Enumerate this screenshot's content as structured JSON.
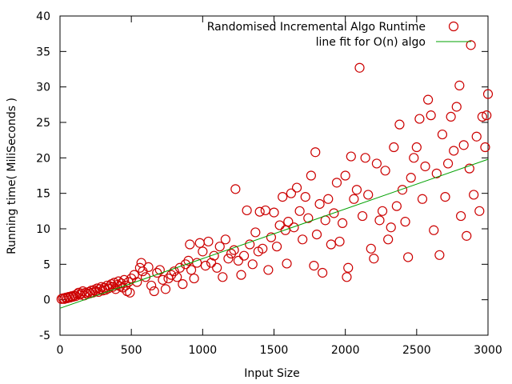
{
  "chart_data": {
    "type": "scatter",
    "xlabel": "Input Size",
    "ylabel": "Running time( MiliSeconds )",
    "xlim": [
      0,
      3000
    ],
    "ylim": [
      -5,
      40
    ],
    "xticks": [
      0,
      500,
      1000,
      1500,
      2000,
      2500,
      3000
    ],
    "yticks": [
      -5,
      0,
      5,
      10,
      15,
      20,
      25,
      30,
      35,
      40
    ],
    "grid": false,
    "legend_position": "top-right",
    "series": [
      {
        "name": "Randomised Incremental Algo Runtime",
        "kind": "scatter",
        "marker": "open-circle",
        "color": "#cc0000",
        "points": [
          [
            10,
            0.1
          ],
          [
            20,
            0.2
          ],
          [
            30,
            0.1
          ],
          [
            40,
            0.3
          ],
          [
            50,
            0.2
          ],
          [
            60,
            0.4
          ],
          [
            70,
            0.3
          ],
          [
            80,
            0.5
          ],
          [
            90,
            0.4
          ],
          [
            100,
            0.6
          ],
          [
            110,
            0.5
          ],
          [
            120,
            0.8
          ],
          [
            130,
            1.0
          ],
          [
            140,
            0.7
          ],
          [
            150,
            0.9
          ],
          [
            160,
            1.2
          ],
          [
            170,
            0.6
          ],
          [
            180,
            1.0
          ],
          [
            190,
            0.8
          ],
          [
            200,
            1.1
          ],
          [
            210,
            0.9
          ],
          [
            220,
            1.3
          ],
          [
            230,
            1.0
          ],
          [
            240,
            1.4
          ],
          [
            250,
            1.2
          ],
          [
            260,
            1.6
          ],
          [
            270,
            1.1
          ],
          [
            280,
            1.5
          ],
          [
            290,
            1.8
          ],
          [
            300,
            1.3
          ],
          [
            310,
            1.7
          ],
          [
            320,
            1.4
          ],
          [
            330,
            2.0
          ],
          [
            340,
            1.6
          ],
          [
            350,
            1.9
          ],
          [
            360,
            2.2
          ],
          [
            370,
            1.8
          ],
          [
            380,
            2.4
          ],
          [
            390,
            1.5
          ],
          [
            400,
            2.1
          ],
          [
            410,
            2.6
          ],
          [
            420,
            1.9
          ],
          [
            430,
            2.3
          ],
          [
            440,
            1.7
          ],
          [
            450,
            2.8
          ],
          [
            460,
            2.0
          ],
          [
            470,
            1.2
          ],
          [
            480,
            2.5
          ],
          [
            490,
            1.0
          ],
          [
            500,
            3.0
          ],
          [
            520,
            3.5
          ],
          [
            540,
            2.5
          ],
          [
            560,
            4.5
          ],
          [
            570,
            5.2
          ],
          [
            580,
            4.0
          ],
          [
            600,
            3.2
          ],
          [
            620,
            4.6
          ],
          [
            640,
            2.0
          ],
          [
            660,
            1.2
          ],
          [
            680,
            3.8
          ],
          [
            700,
            4.2
          ],
          [
            720,
            2.8
          ],
          [
            740,
            1.5
          ],
          [
            760,
            3.0
          ],
          [
            780,
            3.5
          ],
          [
            800,
            4.0
          ],
          [
            820,
            3.2
          ],
          [
            840,
            4.5
          ],
          [
            860,
            2.2
          ],
          [
            880,
            5.0
          ],
          [
            900,
            5.5
          ],
          [
            910,
            7.8
          ],
          [
            920,
            4.2
          ],
          [
            940,
            3.0
          ],
          [
            960,
            5.2
          ],
          [
            980,
            8.0
          ],
          [
            1000,
            6.8
          ],
          [
            1020,
            4.8
          ],
          [
            1040,
            8.2
          ],
          [
            1060,
            5.2
          ],
          [
            1080,
            6.2
          ],
          [
            1100,
            4.5
          ],
          [
            1120,
            7.5
          ],
          [
            1140,
            3.2
          ],
          [
            1160,
            8.5
          ],
          [
            1180,
            5.8
          ],
          [
            1200,
            6.5
          ],
          [
            1220,
            7.0
          ],
          [
            1230,
            15.6
          ],
          [
            1250,
            5.5
          ],
          [
            1270,
            3.5
          ],
          [
            1290,
            6.2
          ],
          [
            1310,
            12.6
          ],
          [
            1330,
            7.8
          ],
          [
            1350,
            5.0
          ],
          [
            1370,
            9.5
          ],
          [
            1390,
            6.8
          ],
          [
            1400,
            12.4
          ],
          [
            1420,
            7.2
          ],
          [
            1440,
            12.6
          ],
          [
            1460,
            4.2
          ],
          [
            1480,
            8.8
          ],
          [
            1500,
            12.3
          ],
          [
            1520,
            7.5
          ],
          [
            1540,
            10.5
          ],
          [
            1560,
            14.5
          ],
          [
            1580,
            9.8
          ],
          [
            1590,
            5.1
          ],
          [
            1600,
            11.0
          ],
          [
            1620,
            15.0
          ],
          [
            1640,
            10.2
          ],
          [
            1660,
            15.8
          ],
          [
            1680,
            12.5
          ],
          [
            1700,
            8.5
          ],
          [
            1720,
            14.5
          ],
          [
            1740,
            11.5
          ],
          [
            1760,
            17.5
          ],
          [
            1780,
            4.8
          ],
          [
            1790,
            20.8
          ],
          [
            1800,
            9.2
          ],
          [
            1820,
            13.5
          ],
          [
            1840,
            3.8
          ],
          [
            1860,
            11.2
          ],
          [
            1880,
            14.2
          ],
          [
            1900,
            7.8
          ],
          [
            1920,
            12.2
          ],
          [
            1940,
            16.5
          ],
          [
            1960,
            8.2
          ],
          [
            1980,
            10.8
          ],
          [
            2000,
            17.5
          ],
          [
            2010,
            3.2
          ],
          [
            2020,
            4.5
          ],
          [
            2040,
            20.2
          ],
          [
            2060,
            14.2
          ],
          [
            2080,
            15.5
          ],
          [
            2100,
            32.7
          ],
          [
            2120,
            11.8
          ],
          [
            2140,
            20.0
          ],
          [
            2160,
            14.8
          ],
          [
            2180,
            7.2
          ],
          [
            2200,
            5.8
          ],
          [
            2220,
            19.2
          ],
          [
            2240,
            11.2
          ],
          [
            2260,
            12.5
          ],
          [
            2280,
            18.2
          ],
          [
            2300,
            8.5
          ],
          [
            2320,
            10.2
          ],
          [
            2340,
            21.5
          ],
          [
            2360,
            13.2
          ],
          [
            2380,
            24.7
          ],
          [
            2400,
            15.5
          ],
          [
            2420,
            11.0
          ],
          [
            2440,
            6.0
          ],
          [
            2460,
            17.2
          ],
          [
            2480,
            20.0
          ],
          [
            2500,
            21.5
          ],
          [
            2520,
            25.5
          ],
          [
            2540,
            14.2
          ],
          [
            2560,
            18.8
          ],
          [
            2580,
            28.2
          ],
          [
            2600,
            26.0
          ],
          [
            2620,
            9.8
          ],
          [
            2640,
            17.8
          ],
          [
            2660,
            6.3
          ],
          [
            2680,
            23.3
          ],
          [
            2700,
            14.5
          ],
          [
            2720,
            19.2
          ],
          [
            2740,
            25.8
          ],
          [
            2760,
            21.0
          ],
          [
            2780,
            27.2
          ],
          [
            2800,
            30.2
          ],
          [
            2810,
            11.8
          ],
          [
            2830,
            21.8
          ],
          [
            2850,
            9.0
          ],
          [
            2870,
            18.5
          ],
          [
            2880,
            35.9
          ],
          [
            2900,
            14.8
          ],
          [
            2920,
            23.0
          ],
          [
            2940,
            12.5
          ],
          [
            2960,
            25.8
          ],
          [
            2980,
            21.5
          ],
          [
            2990,
            26.0
          ],
          [
            3000,
            29.0
          ]
        ]
      },
      {
        "name": "line fit for O(n) algo",
        "kind": "line",
        "color": "#00a000",
        "points": [
          [
            0,
            -1.2
          ],
          [
            3000,
            19.8
          ]
        ]
      }
    ]
  }
}
